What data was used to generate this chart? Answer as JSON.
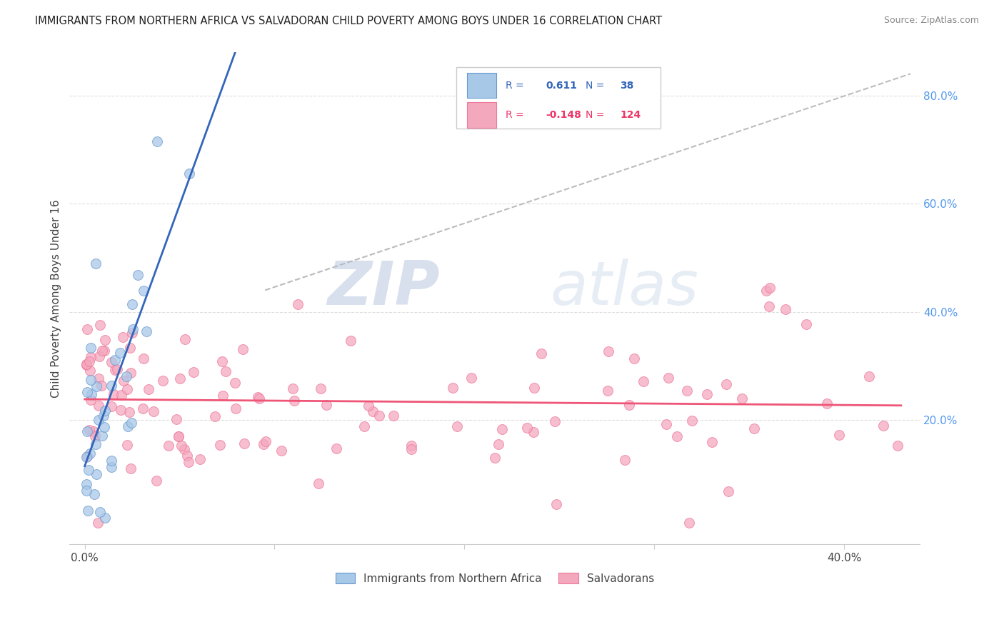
{
  "title": "IMMIGRANTS FROM NORTHERN AFRICA VS SALVADORAN CHILD POVERTY AMONG BOYS UNDER 16 CORRELATION CHART",
  "source": "Source: ZipAtlas.com",
  "ylabel": "Child Poverty Among Boys Under 16",
  "xlim": [
    -0.008,
    0.44
  ],
  "ylim": [
    -0.03,
    0.88
  ],
  "R_blue": 0.611,
  "N_blue": 38,
  "R_pink": -0.148,
  "N_pink": 124,
  "blue_color": "#a8c8e8",
  "pink_color": "#f4a8be",
  "blue_edge_color": "#6699cc",
  "pink_edge_color": "#ee7799",
  "blue_line_color": "#3366bb",
  "pink_line_color": "#ee5577",
  "diag_line_color": "#bbbbbb",
  "legend_blue_label": "Immigrants from Northern Africa",
  "legend_pink_label": "Salvadorans",
  "watermark_zip": "ZIP",
  "watermark_atlas": "atlas",
  "seed_blue": 77,
  "seed_pink": 99
}
